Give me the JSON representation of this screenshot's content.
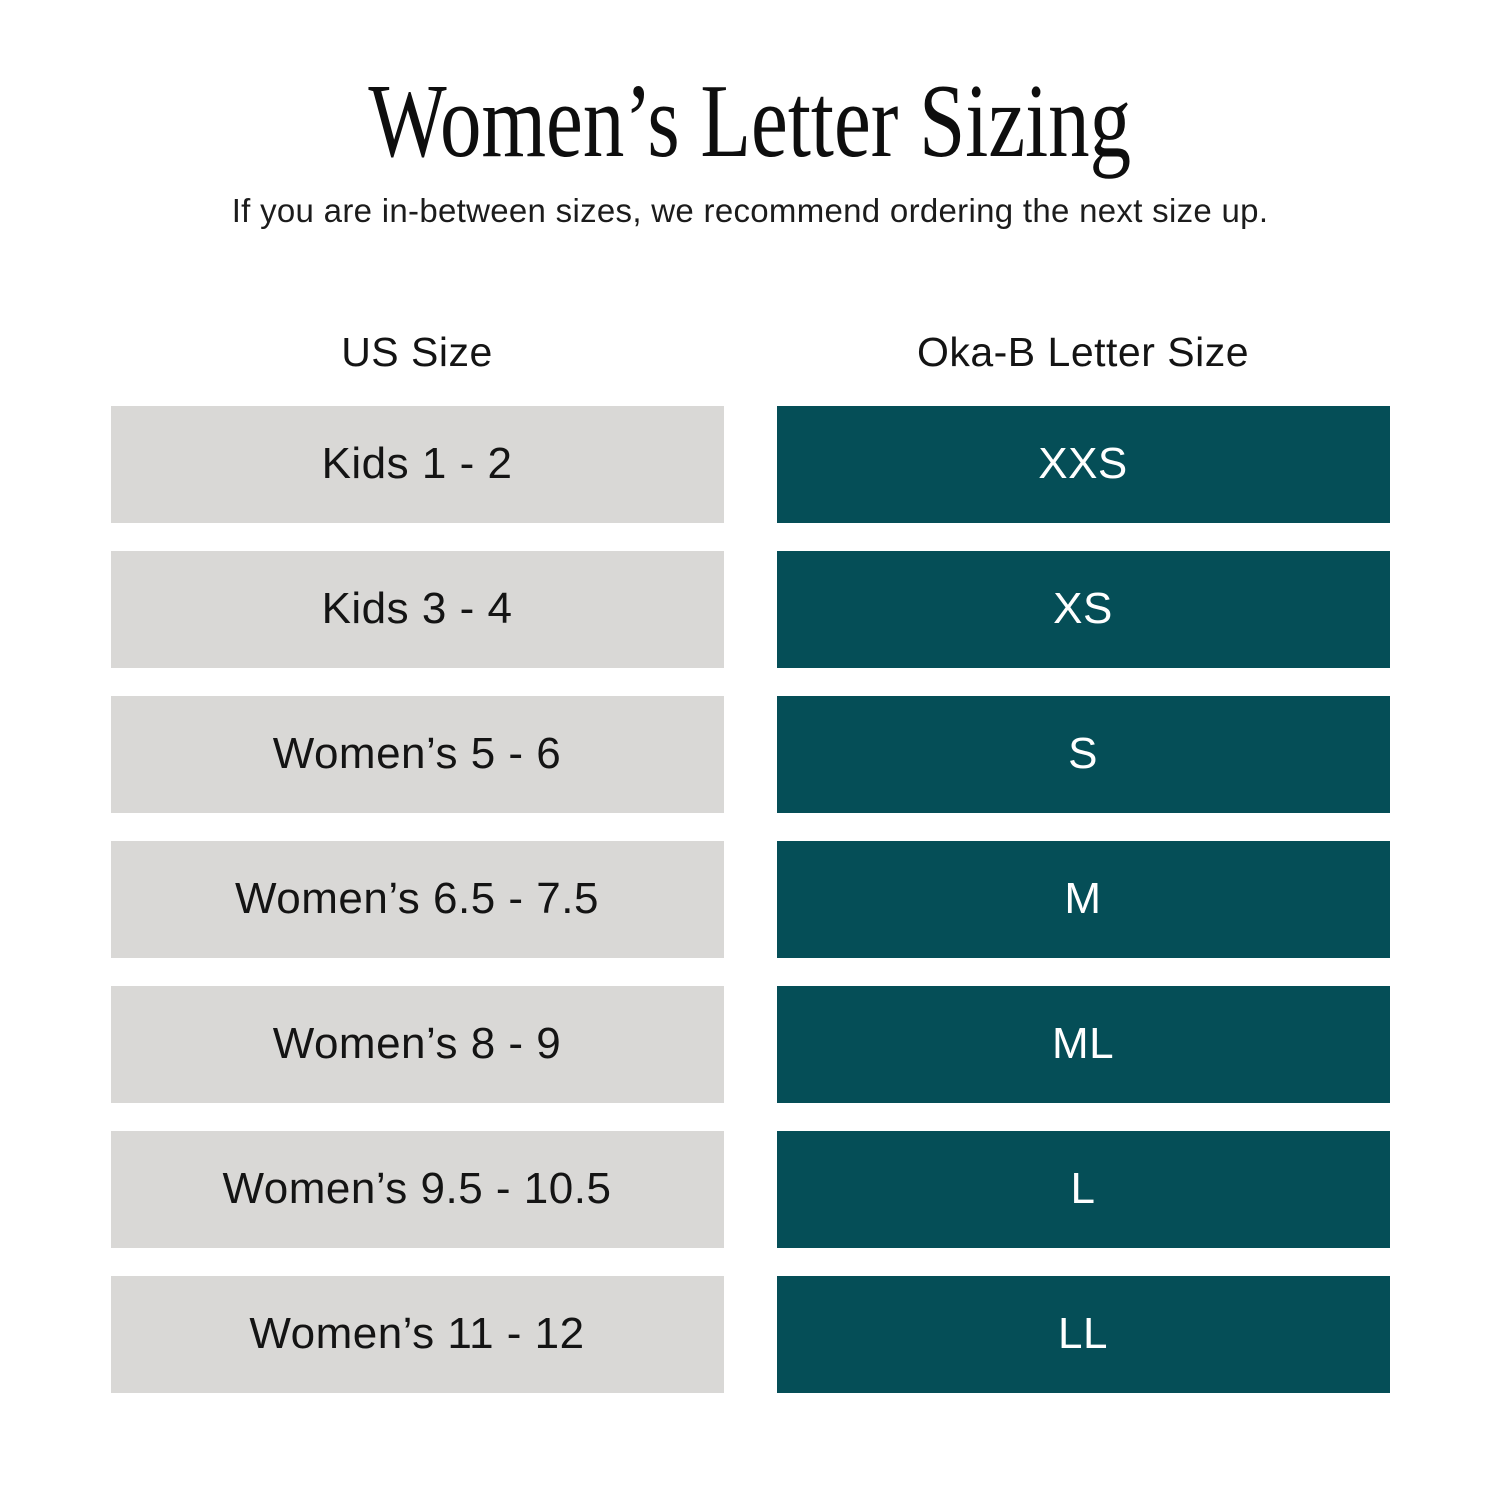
{
  "page": {
    "title": "Women’s Letter Sizing",
    "subtitle": "If you are in-between sizes, we recommend ordering the next size up."
  },
  "table": {
    "headers": {
      "us": "US Size",
      "letter": "Oka-B Letter Size"
    },
    "rows": [
      {
        "us": "Kids 1 - 2",
        "letter": "XXS"
      },
      {
        "us": "Kids 3 - 4",
        "letter": "XS"
      },
      {
        "us": "Women’s 5 - 6",
        "letter": "S"
      },
      {
        "us": "Women’s 6.5 - 7.5",
        "letter": "M"
      },
      {
        "us": "Women’s 8 - 9",
        "letter": "ML"
      },
      {
        "us": "Women’s 9.5 - 10.5",
        "letter": "L"
      },
      {
        "us": "Women’s 11 - 12",
        "letter": "LL"
      }
    ]
  },
  "colors": {
    "teal_cell": "#054e57",
    "gray_cell": "#d9d8d6",
    "text_dark": "#141414",
    "text_light": "#ffffff",
    "background": "#ffffff"
  },
  "chart_data": {
    "type": "table",
    "title": "Women’s Letter Sizing",
    "subtitle": "If you are in-between sizes, we recommend ordering the next size up.",
    "columns": [
      "US Size",
      "Oka-B Letter Size"
    ],
    "rows": [
      [
        "Kids 1 - 2",
        "XXS"
      ],
      [
        "Kids 3 - 4",
        "XS"
      ],
      [
        "Women’s 5 - 6",
        "S"
      ],
      [
        "Women’s 6.5 - 7.5",
        "M"
      ],
      [
        "Women’s 8 - 9",
        "ML"
      ],
      [
        "Women’s 9.5 - 10.5",
        "L"
      ],
      [
        "Women’s 11 - 12",
        "LL"
      ]
    ],
    "layout": {
      "legend": false,
      "grid": false,
      "note": "two-column sizing lookup table; left column gray cells, right column teal cells"
    }
  }
}
